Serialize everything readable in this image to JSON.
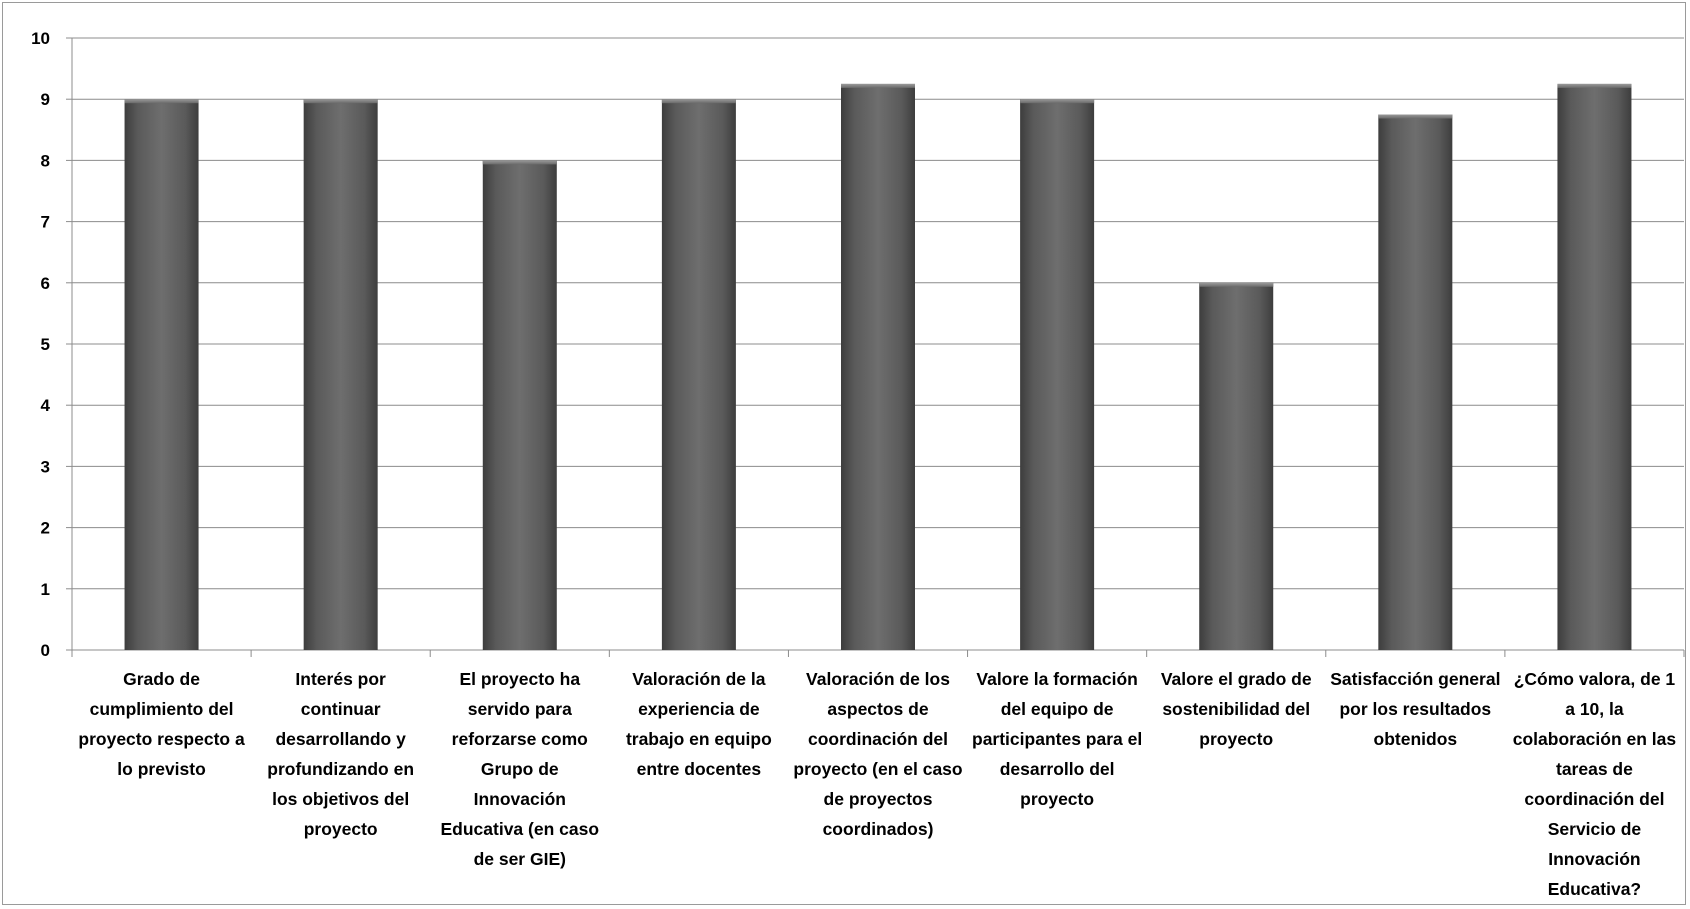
{
  "chart_data": {
    "type": "bar",
    "title": "",
    "xlabel": "",
    "ylabel": "",
    "ylim": [
      0,
      10
    ],
    "yticks": [
      "0",
      "1",
      "2",
      "3",
      "4",
      "5",
      "6",
      "7",
      "8",
      "9",
      "10"
    ],
    "grid": true,
    "legend": "none",
    "bar_color": "#666666",
    "categories": [
      "Grado de cumplimiento del proyecto respecto a lo previsto",
      "Interés por continuar desarrollando y profundizando en los objetivos del proyecto",
      "El proyecto ha servido para reforzarse como Grupo de Innovación Educativa (en caso de ser GIE)",
      "Valoración de la experiencia de trabajo en equipo entre docentes",
      "Valoración de los aspectos de coordinación del proyecto (en el caso de proyectos coordinados)",
      "Valore la formación del equipo de participantes para el desarrollo del proyecto",
      "Valore el grado de sostenibilidad del proyecto",
      "Satisfacción general por los resultados obtenidos",
      "¿Cómo valora, de 1 a 10, la colaboración en las tareas de coordinación del Servicio de Innovación Educativa?"
    ],
    "values": [
      9,
      9,
      8,
      9,
      9.25,
      9,
      6,
      8.75,
      9.25
    ]
  }
}
